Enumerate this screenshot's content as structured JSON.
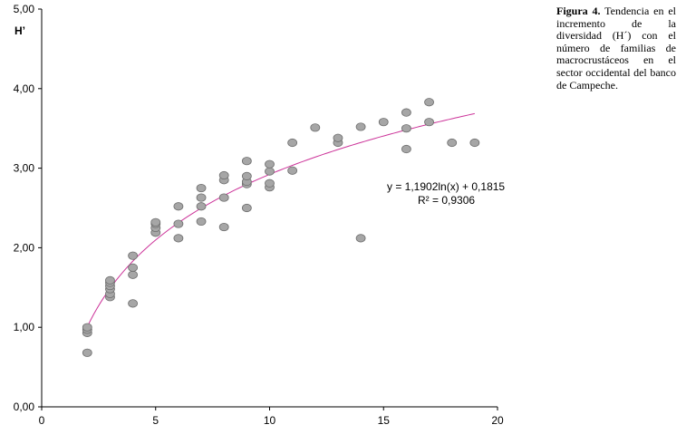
{
  "caption": {
    "label": "Figura 4.",
    "text": "Tendencia en el incremento de la diversidad (H´) con el número de familias de macrocrustáceos en el sector occidental del banco de Campeche."
  },
  "chart_data": {
    "type": "scatter",
    "title": "",
    "xlabel": "",
    "ylabel": "H’",
    "xlim": [
      0,
      20
    ],
    "ylim": [
      0,
      5
    ],
    "x_ticks": [
      "0",
      "5",
      "10",
      "15",
      "20"
    ],
    "y_ticks": [
      "0,00",
      "1,00",
      "2,00",
      "3,00",
      "4,00",
      "5,00"
    ],
    "grid": false,
    "marker_color": "#a6a6a6",
    "marker_edge_color": "#6e6e6e",
    "trendline_color": "#cc3399",
    "points": [
      {
        "x": 2,
        "y": 0.68
      },
      {
        "x": 2,
        "y": 0.93
      },
      {
        "x": 2,
        "y": 0.97
      },
      {
        "x": 2,
        "y": 1.0
      },
      {
        "x": 3,
        "y": 1.38
      },
      {
        "x": 3,
        "y": 1.42
      },
      {
        "x": 3,
        "y": 1.48
      },
      {
        "x": 3,
        "y": 1.52
      },
      {
        "x": 3,
        "y": 1.56
      },
      {
        "x": 3,
        "y": 1.59
      },
      {
        "x": 4,
        "y": 1.3
      },
      {
        "x": 4,
        "y": 1.66
      },
      {
        "x": 4,
        "y": 1.75
      },
      {
        "x": 4,
        "y": 1.9
      },
      {
        "x": 5,
        "y": 2.19
      },
      {
        "x": 5,
        "y": 2.25
      },
      {
        "x": 5,
        "y": 2.3
      },
      {
        "x": 5,
        "y": 2.32
      },
      {
        "x": 6,
        "y": 2.12
      },
      {
        "x": 6,
        "y": 2.3
      },
      {
        "x": 6,
        "y": 2.52
      },
      {
        "x": 7,
        "y": 2.33
      },
      {
        "x": 7,
        "y": 2.52
      },
      {
        "x": 7,
        "y": 2.63
      },
      {
        "x": 7,
        "y": 2.75
      },
      {
        "x": 8,
        "y": 2.26
      },
      {
        "x": 8,
        "y": 2.63
      },
      {
        "x": 8,
        "y": 2.85
      },
      {
        "x": 8,
        "y": 2.91
      },
      {
        "x": 9,
        "y": 2.5
      },
      {
        "x": 9,
        "y": 2.8
      },
      {
        "x": 9,
        "y": 2.83
      },
      {
        "x": 9,
        "y": 2.9
      },
      {
        "x": 9,
        "y": 3.09
      },
      {
        "x": 10,
        "y": 2.76
      },
      {
        "x": 10,
        "y": 2.81
      },
      {
        "x": 10,
        "y": 2.96
      },
      {
        "x": 10,
        "y": 3.05
      },
      {
        "x": 11,
        "y": 2.97
      },
      {
        "x": 11,
        "y": 3.32
      },
      {
        "x": 12,
        "y": 3.51
      },
      {
        "x": 13,
        "y": 3.32
      },
      {
        "x": 13,
        "y": 3.38
      },
      {
        "x": 14,
        "y": 2.12
      },
      {
        "x": 14,
        "y": 3.52
      },
      {
        "x": 15,
        "y": 3.58
      },
      {
        "x": 16,
        "y": 3.24
      },
      {
        "x": 16,
        "y": 3.5
      },
      {
        "x": 16,
        "y": 3.7
      },
      {
        "x": 17,
        "y": 3.58
      },
      {
        "x": 17,
        "y": 3.83
      },
      {
        "x": 18,
        "y": 3.32
      },
      {
        "x": 19,
        "y": 3.32
      }
    ],
    "trendline": {
      "type": "logarithmic",
      "a": 1.1902,
      "b": 0.1815,
      "x_range": [
        2,
        19
      ],
      "equation_label": "y = 1,1902ln(x) + 0,1815",
      "r2_label": "R² = 0,9306"
    }
  }
}
